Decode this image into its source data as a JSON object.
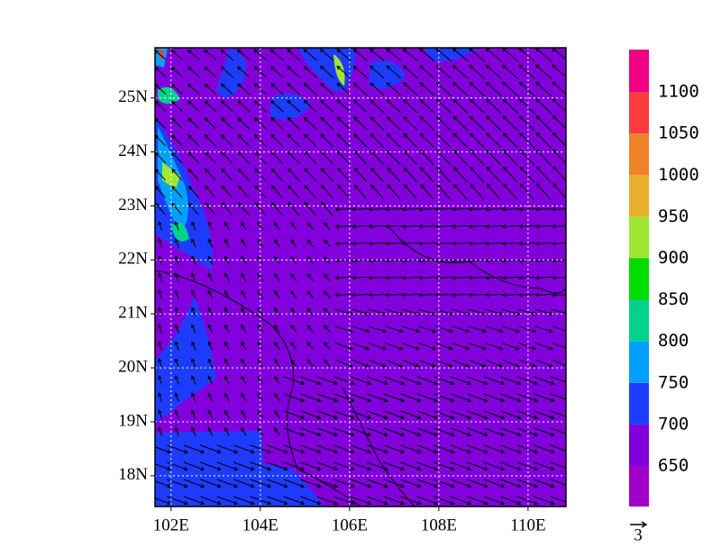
{
  "map": {
    "lon_range": [
      101.64,
      110.85
    ],
    "lat_range": [
      17.43,
      25.93
    ],
    "lon_ticks": [
      {
        "value": 102,
        "label": "102E"
      },
      {
        "value": 104,
        "label": "104E"
      },
      {
        "value": 106,
        "label": "106E"
      },
      {
        "value": 108,
        "label": "108E"
      },
      {
        "value": 110,
        "label": "110E"
      }
    ],
    "lat_ticks": [
      {
        "value": 18,
        "label": "18N"
      },
      {
        "value": 19,
        "label": "19N"
      },
      {
        "value": 20,
        "label": "20N"
      },
      {
        "value": 21,
        "label": "21N"
      },
      {
        "value": 22,
        "label": "22N"
      },
      {
        "value": 23,
        "label": "23N"
      },
      {
        "value": 24,
        "label": "24N"
      },
      {
        "value": 25,
        "label": "25N"
      }
    ],
    "colorbar": {
      "levels": [
        650,
        700,
        750,
        800,
        850,
        900,
        950,
        1000,
        1050,
        1100
      ],
      "colors": [
        "#a000c8",
        "#8200dc",
        "#1e3cff",
        "#00a0ff",
        "#00d28c",
        "#00dc00",
        "#a0e632",
        "#e6af2d",
        "#f08228",
        "#fa3c3c",
        "#f00082"
      ]
    },
    "vector_reference": 3
  }
}
